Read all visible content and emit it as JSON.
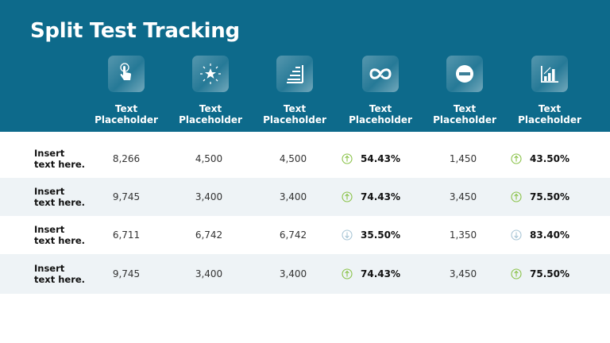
{
  "title": "Split Test Tracking",
  "colors": {
    "header_bg": "#0d6a8b",
    "up": "#8bc34a",
    "down": "#a9c6d6",
    "row_alt": "#eef3f6"
  },
  "columns": [
    {
      "icon": "touch-hand-icon",
      "label_line1": "Text",
      "label_line2": "Placeholder"
    },
    {
      "icon": "sparkle-star-icon",
      "label_line1": "Text",
      "label_line2": "Placeholder"
    },
    {
      "icon": "stairs-chart-icon",
      "label_line1": "Text",
      "label_line2": "Placeholder"
    },
    {
      "icon": "infinity-loop-icon",
      "label_line1": "Text",
      "label_line2": "Placeholder"
    },
    {
      "icon": "minus-circle-icon",
      "label_line1": "Text",
      "label_line2": "Placeholder"
    },
    {
      "icon": "bar-chart-growth-icon",
      "label_line1": "Text",
      "label_line2": "Placeholder"
    }
  ],
  "rows": [
    {
      "label_line1": "Insert",
      "label_line2": "text here.",
      "c1": "8,266",
      "c2": "4,500",
      "c3": "4,500",
      "c4": "54.43%",
      "c4_trend": "up",
      "c5": "1,450",
      "c6": "43.50%",
      "c6_trend": "up"
    },
    {
      "label_line1": "Insert",
      "label_line2": "text here.",
      "c1": "9,745",
      "c2": "3,400",
      "c3": "3,400",
      "c4": "74.43%",
      "c4_trend": "up",
      "c5": "3,450",
      "c6": "75.50%",
      "c6_trend": "up"
    },
    {
      "label_line1": "Insert",
      "label_line2": "text here.",
      "c1": "6,711",
      "c2": "6,742",
      "c3": "6,742",
      "c4": "35.50%",
      "c4_trend": "down",
      "c5": "1,350",
      "c6": "83.40%",
      "c6_trend": "down"
    },
    {
      "label_line1": "Insert",
      "label_line2": "text here.",
      "c1": "9,745",
      "c2": "3,400",
      "c3": "3,400",
      "c4": "74.43%",
      "c4_trend": "up",
      "c5": "3,450",
      "c6": "75.50%",
      "c6_trend": "up"
    }
  ]
}
